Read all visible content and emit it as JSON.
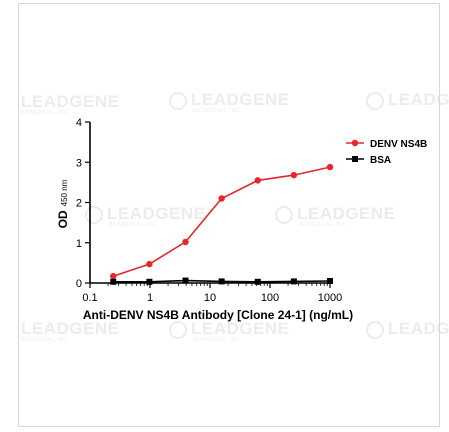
{
  "watermark": {
    "text": "LEADGENE",
    "subtext": "BIOMEDICAL, INC."
  },
  "chart_data": {
    "type": "line",
    "xlabel": "Anti-DENV NS4B Antibody [Clone 24-1] (ng/mL)",
    "ylabel_main": "OD",
    "ylabel_sub": "450 nm",
    "xscale": "log",
    "xlim": [
      0.1,
      1000
    ],
    "ylim": [
      0,
      4
    ],
    "xticks": [
      0.1,
      1,
      10,
      100,
      1000
    ],
    "xtick_labels": [
      "0.1",
      "1",
      "10",
      "100",
      "1000"
    ],
    "yticks": [
      0,
      1,
      2,
      3,
      4
    ],
    "ytick_labels": [
      "0",
      "1",
      "2",
      "3",
      "4"
    ],
    "grid": false,
    "legend": "top-right",
    "series": [
      {
        "name": "DENV NS4B",
        "color": "#e8262a",
        "marker": "circle",
        "x": [
          0.244,
          0.977,
          3.906,
          15.625,
          62.5,
          250,
          1000
        ],
        "y": [
          0.17,
          0.47,
          1.02,
          2.1,
          2.55,
          2.68,
          2.88
        ]
      },
      {
        "name": "BSA",
        "color": "#000000",
        "marker": "square",
        "x": [
          0.244,
          0.977,
          3.906,
          15.625,
          62.5,
          250,
          1000
        ],
        "y": [
          0.03,
          0.03,
          0.06,
          0.04,
          0.03,
          0.04,
          0.05
        ]
      }
    ]
  }
}
